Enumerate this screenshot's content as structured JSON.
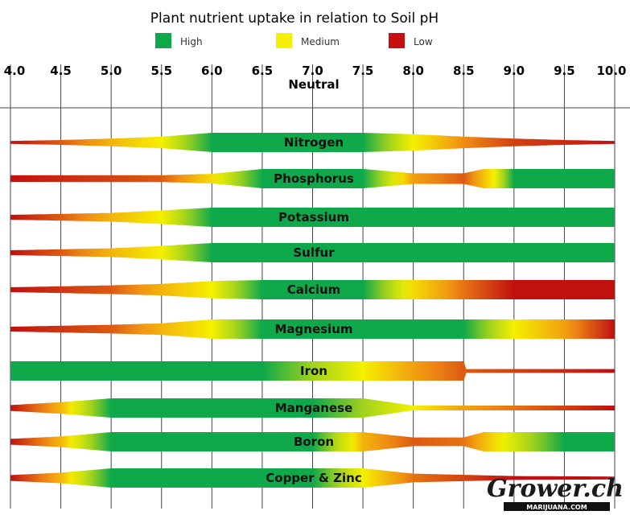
{
  "chart_data": {
    "type": "area",
    "title": "Plant nutrient uptake in relation to Soil pH",
    "legend": [
      {
        "label": "High",
        "color": "#0fa84b"
      },
      {
        "label": "Medium",
        "color": "#f5f000"
      },
      {
        "label": "Low",
        "color": "#c41010"
      }
    ],
    "x_ticks": [
      4.0,
      4.5,
      5.0,
      5.5,
      6.0,
      6.5,
      7.0,
      7.5,
      8.0,
      8.5,
      9.0,
      9.5,
      10.0
    ],
    "x_tick_labels": [
      "4.0",
      "4.5",
      "5.0",
      "5.5",
      "6.0",
      "6.5",
      "7.0",
      "7.5",
      "8.0",
      "8.5",
      "9.0",
      "9.5",
      "10.0"
    ],
    "xlim": [
      4.0,
      10.0
    ],
    "neutral_label": "Neutral",
    "nutrients": [
      {
        "name": "Nitrogen",
        "width": [
          [
            4.0,
            0.15
          ],
          [
            4.5,
            0.25
          ],
          [
            5.0,
            0.4
          ],
          [
            5.5,
            0.6
          ],
          [
            6.0,
            1.0
          ],
          [
            7.0,
            1.0
          ],
          [
            7.5,
            1.0
          ],
          [
            8.0,
            0.85
          ],
          [
            8.5,
            0.6
          ],
          [
            9.0,
            0.4
          ],
          [
            9.5,
            0.25
          ],
          [
            10.0,
            0.15
          ]
        ],
        "level": [
          [
            4.0,
            0.0
          ],
          [
            4.5,
            0.15
          ],
          [
            5.0,
            0.35
          ],
          [
            5.5,
            0.5
          ],
          [
            6.0,
            1.0
          ],
          [
            7.5,
            1.0
          ],
          [
            8.0,
            0.5
          ],
          [
            8.5,
            0.25
          ],
          [
            9.0,
            0.1
          ],
          [
            10.0,
            0.0
          ]
        ]
      },
      {
        "name": "Phosphorus",
        "width": [
          [
            4.0,
            0.35
          ],
          [
            5.5,
            0.35
          ],
          [
            6.0,
            0.5
          ],
          [
            6.5,
            1.0
          ],
          [
            7.5,
            1.0
          ],
          [
            8.0,
            0.55
          ],
          [
            8.5,
            0.55
          ],
          [
            8.7,
            1.0
          ],
          [
            10.0,
            1.0
          ]
        ],
        "level": [
          [
            4.0,
            0.0
          ],
          [
            5.5,
            0.15
          ],
          [
            6.0,
            0.45
          ],
          [
            6.5,
            1.0
          ],
          [
            7.5,
            1.0
          ],
          [
            8.0,
            0.3
          ],
          [
            8.5,
            0.15
          ],
          [
            8.8,
            0.5
          ],
          [
            9.0,
            1.0
          ],
          [
            10.0,
            1.0
          ]
        ]
      },
      {
        "name": "Potassium",
        "width": [
          [
            4.0,
            0.25
          ],
          [
            5.0,
            0.45
          ],
          [
            5.5,
            0.7
          ],
          [
            6.0,
            1.0
          ],
          [
            10.0,
            1.0
          ]
        ],
        "level": [
          [
            4.0,
            0.0
          ],
          [
            4.5,
            0.15
          ],
          [
            5.0,
            0.35
          ],
          [
            5.5,
            0.5
          ],
          [
            6.0,
            1.0
          ],
          [
            10.0,
            1.0
          ]
        ]
      },
      {
        "name": "Sulfur",
        "width": [
          [
            4.0,
            0.25
          ],
          [
            5.0,
            0.45
          ],
          [
            5.5,
            0.7
          ],
          [
            6.0,
            1.0
          ],
          [
            10.0,
            1.0
          ]
        ],
        "level": [
          [
            4.0,
            0.0
          ],
          [
            4.5,
            0.15
          ],
          [
            5.0,
            0.35
          ],
          [
            5.5,
            0.5
          ],
          [
            6.0,
            1.0
          ],
          [
            10.0,
            1.0
          ]
        ]
      },
      {
        "name": "Calcium",
        "width": [
          [
            4.0,
            0.25
          ],
          [
            5.0,
            0.45
          ],
          [
            5.5,
            0.6
          ],
          [
            6.0,
            0.9
          ],
          [
            6.5,
            1.0
          ],
          [
            7.5,
            1.0
          ],
          [
            8.5,
            1.0
          ],
          [
            9.0,
            1.0
          ],
          [
            10.0,
            1.0
          ]
        ],
        "level": [
          [
            4.0,
            0.0
          ],
          [
            5.0,
            0.15
          ],
          [
            5.5,
            0.35
          ],
          [
            6.0,
            0.5
          ],
          [
            6.5,
            1.0
          ],
          [
            7.5,
            1.0
          ],
          [
            8.0,
            0.45
          ],
          [
            8.5,
            0.2
          ],
          [
            9.0,
            0.0
          ],
          [
            10.0,
            0.0
          ]
        ]
      },
      {
        "name": "Magnesium",
        "width": [
          [
            4.0,
            0.25
          ],
          [
            5.0,
            0.45
          ],
          [
            5.5,
            0.6
          ],
          [
            6.0,
            1.0
          ],
          [
            10.0,
            1.0
          ]
        ],
        "level": [
          [
            4.0,
            0.0
          ],
          [
            5.0,
            0.15
          ],
          [
            5.5,
            0.35
          ],
          [
            6.0,
            0.5
          ],
          [
            6.5,
            1.0
          ],
          [
            8.5,
            1.0
          ],
          [
            9.0,
            0.5
          ],
          [
            9.5,
            0.3
          ],
          [
            10.0,
            0.0
          ]
        ]
      },
      {
        "name": "Iron",
        "width": [
          [
            4.0,
            1.0
          ],
          [
            8.5,
            1.0
          ],
          [
            8.5,
            0.2
          ],
          [
            10.0,
            0.2
          ]
        ],
        "level": [
          [
            4.0,
            1.0
          ],
          [
            6.5,
            1.0
          ],
          [
            7.5,
            0.5
          ],
          [
            8.0,
            0.3
          ],
          [
            8.5,
            0.15
          ],
          [
            10.0,
            0.0
          ]
        ]
      },
      {
        "name": "Manganese",
        "width": [
          [
            4.0,
            0.3
          ],
          [
            4.5,
            0.6
          ],
          [
            5.0,
            1.0
          ],
          [
            6.5,
            1.0
          ],
          [
            7.5,
            1.0
          ],
          [
            8.0,
            0.25
          ],
          [
            10.0,
            0.25
          ]
        ],
        "level": [
          [
            4.0,
            0.0
          ],
          [
            4.5,
            0.35
          ],
          [
            5.0,
            1.0
          ],
          [
            7.0,
            1.0
          ],
          [
            8.0,
            0.5
          ],
          [
            8.5,
            0.3
          ],
          [
            10.0,
            0.0
          ]
        ]
      },
      {
        "name": "Boron",
        "width": [
          [
            4.0,
            0.3
          ],
          [
            4.5,
            0.55
          ],
          [
            5.0,
            1.0
          ],
          [
            7.5,
            1.0
          ],
          [
            8.0,
            0.45
          ],
          [
            8.5,
            0.45
          ],
          [
            8.7,
            1.0
          ],
          [
            10.0,
            1.0
          ]
        ],
        "level": [
          [
            4.0,
            0.0
          ],
          [
            4.5,
            0.35
          ],
          [
            5.0,
            1.0
          ],
          [
            7.0,
            1.0
          ],
          [
            7.5,
            0.35
          ],
          [
            8.0,
            0.15
          ],
          [
            8.5,
            0.2
          ],
          [
            9.0,
            0.6
          ],
          [
            9.5,
            1.0
          ],
          [
            10.0,
            1.0
          ]
        ]
      },
      {
        "name": "Copper & Zinc",
        "width": [
          [
            4.0,
            0.3
          ],
          [
            4.5,
            0.55
          ],
          [
            5.0,
            1.0
          ],
          [
            7.5,
            1.0
          ],
          [
            8.0,
            0.45
          ],
          [
            9.0,
            0.2
          ],
          [
            10.0,
            0.15
          ]
        ],
        "level": [
          [
            4.0,
            0.0
          ],
          [
            4.5,
            0.35
          ],
          [
            5.0,
            1.0
          ],
          [
            7.0,
            1.0
          ],
          [
            7.5,
            0.5
          ],
          [
            8.0,
            0.2
          ],
          [
            9.0,
            0.0
          ],
          [
            10.0,
            0.0
          ]
        ]
      }
    ]
  },
  "watermark": {
    "text": "Grower.ch",
    "sub": "MARIJUANA.COM"
  }
}
